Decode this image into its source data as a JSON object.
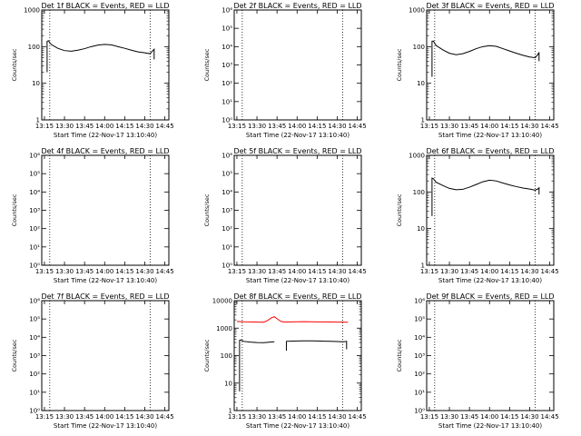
{
  "chart_data": [
    {
      "type": "line",
      "title": "Det 1f BLACK = Events, RED = LLD",
      "xlabel": "Start Time (22-Nov-17 13:10:40)",
      "ylabel": "Counts/sec",
      "yscale": "log",
      "ylim": [
        1,
        1000
      ],
      "xlim": [
        "13:13",
        "14:48"
      ],
      "x_ticks": [
        "13:15",
        "13:30",
        "13:45",
        "14:00",
        "14:15",
        "14:30",
        "14:45"
      ],
      "y_ticks": [
        "1",
        "10",
        "100",
        "1000"
      ],
      "vlines": [
        "13:19",
        "14:34"
      ],
      "series": [
        {
          "color": "#000000",
          "x": [
            "13:17",
            "13:17",
            "13:18",
            "13:20",
            "13:25",
            "13:30",
            "13:35",
            "13:40",
            "13:45",
            "13:50",
            "13:55",
            "14:00",
            "14:05",
            "14:10",
            "14:15",
            "14:20",
            "14:25",
            "14:30",
            "14:34",
            "14:36",
            "14:37",
            "14:37"
          ],
          "y": [
            20,
            140,
            145,
            115,
            90,
            78,
            75,
            80,
            88,
            100,
            110,
            115,
            112,
            100,
            90,
            80,
            72,
            68,
            64,
            78,
            85,
            45
          ]
        }
      ]
    },
    {
      "type": "line",
      "title": "Det 2f BLACK = Events, RED = LLD",
      "xlabel": "Start Time (22-Nov-17 13:10:40)",
      "ylabel": "Counts/sec",
      "yscale": "log",
      "ylim": [
        1,
        1000000
      ],
      "xlim": [
        "13:13",
        "14:48"
      ],
      "x_ticks": [
        "13:15",
        "13:30",
        "13:45",
        "14:00",
        "14:15",
        "14:30",
        "14:45"
      ],
      "y_ticks": [
        "10⁰",
        "10¹",
        "10²",
        "10³",
        "10⁴",
        "10⁵",
        "10⁶"
      ],
      "vlines": [
        "13:19",
        "14:34"
      ],
      "series": []
    },
    {
      "type": "line",
      "title": "Det 3f BLACK = Events, RED = LLD",
      "xlabel": "Start Time (22-Nov-17 13:10:40)",
      "ylabel": "Counts/sec",
      "yscale": "log",
      "ylim": [
        1,
        1000
      ],
      "xlim": [
        "13:13",
        "14:48"
      ],
      "x_ticks": [
        "13:15",
        "13:30",
        "13:45",
        "14:00",
        "14:15",
        "14:30",
        "14:45"
      ],
      "y_ticks": [
        "1",
        "10",
        "100",
        "1000"
      ],
      "vlines": [
        "13:19",
        "14:34"
      ],
      "series": [
        {
          "color": "#000000",
          "x": [
            "13:17",
            "13:17",
            "13:18",
            "13:20",
            "13:25",
            "13:30",
            "13:35",
            "13:40",
            "13:45",
            "13:50",
            "13:55",
            "14:00",
            "14:05",
            "14:10",
            "14:15",
            "14:20",
            "14:25",
            "14:30",
            "14:34",
            "14:36",
            "14:37",
            "14:37"
          ],
          "y": [
            15,
            140,
            142,
            108,
            82,
            66,
            60,
            64,
            74,
            88,
            100,
            106,
            102,
            88,
            76,
            66,
            58,
            52,
            50,
            60,
            70,
            40
          ]
        }
      ]
    },
    {
      "type": "line",
      "title": "Det 4f BLACK = Events, RED = LLD",
      "xlabel": "Start Time (22-Nov-17 13:10:40)",
      "ylabel": "Counts/sec",
      "yscale": "log",
      "ylim": [
        1,
        1000000
      ],
      "xlim": [
        "13:13",
        "14:48"
      ],
      "x_ticks": [
        "13:15",
        "13:30",
        "13:45",
        "14:00",
        "14:15",
        "14:30",
        "14:45"
      ],
      "y_ticks": [
        "10⁰",
        "10¹",
        "10²",
        "10³",
        "10⁴",
        "10⁵",
        "10⁶"
      ],
      "vlines": [
        "13:19",
        "14:34"
      ],
      "series": []
    },
    {
      "type": "line",
      "title": "Det 5f BLACK = Events, RED = LLD",
      "xlabel": "Start Time (22-Nov-17 13:10:40)",
      "ylabel": "Counts/sec",
      "yscale": "log",
      "ylim": [
        1,
        1000000
      ],
      "xlim": [
        "13:13",
        "14:48"
      ],
      "x_ticks": [
        "13:15",
        "13:30",
        "13:45",
        "14:00",
        "14:15",
        "14:30",
        "14:45"
      ],
      "y_ticks": [
        "10⁰",
        "10¹",
        "10²",
        "10³",
        "10⁴",
        "10⁵",
        "10⁶"
      ],
      "vlines": [
        "13:19",
        "14:34"
      ],
      "series": []
    },
    {
      "type": "line",
      "title": "Det 6f BLACK = Events, RED = LLD",
      "xlabel": "Start Time (22-Nov-17 13:10:40)",
      "ylabel": "Counts/sec",
      "yscale": "log",
      "ylim": [
        1,
        1000
      ],
      "xlim": [
        "13:13",
        "14:48"
      ],
      "x_ticks": [
        "13:15",
        "13:30",
        "13:45",
        "14:00",
        "14:15",
        "14:30",
        "14:45"
      ],
      "y_ticks": [
        "1",
        "10",
        "100",
        "1000"
      ],
      "vlines": [
        "13:19",
        "14:34"
      ],
      "series": [
        {
          "color": "#000000",
          "x": [
            "13:17",
            "13:17",
            "13:18",
            "13:20",
            "13:25",
            "13:30",
            "13:35",
            "13:40",
            "13:45",
            "13:50",
            "13:55",
            "14:00",
            "14:05",
            "14:10",
            "14:15",
            "14:20",
            "14:25",
            "14:30",
            "14:34",
            "14:36",
            "14:37",
            "14:37"
          ],
          "y": [
            22,
            240,
            230,
            185,
            150,
            125,
            115,
            118,
            135,
            160,
            190,
            210,
            200,
            175,
            155,
            140,
            128,
            120,
            112,
            120,
            130,
            85
          ]
        }
      ]
    },
    {
      "type": "line",
      "title": "Det 7f BLACK = Events, RED = LLD",
      "xlabel": "Start Time (22-Nov-17 13:10:40)",
      "ylabel": "Counts/sec",
      "yscale": "log",
      "ylim": [
        1,
        1000000
      ],
      "xlim": [
        "13:13",
        "14:48"
      ],
      "x_ticks": [
        "13:15",
        "13:30",
        "13:45",
        "14:00",
        "14:15",
        "14:30",
        "14:45"
      ],
      "y_ticks": [
        "10⁰",
        "10¹",
        "10²",
        "10³",
        "10⁴",
        "10⁵",
        "10⁶"
      ],
      "vlines": [
        "13:19",
        "14:34"
      ],
      "series": []
    },
    {
      "type": "line",
      "title": "Det 8f BLACK = Events, RED = LLD",
      "xlabel": "Start Time (22-Nov-17 13:10:40)",
      "ylabel": "Counts/sec",
      "yscale": "log",
      "ylim": [
        1,
        10000
      ],
      "xlim": [
        "13:13",
        "14:48"
      ],
      "x_ticks": [
        "13:15",
        "13:30",
        "13:45",
        "14:00",
        "14:15",
        "14:30",
        "14:45"
      ],
      "y_ticks": [
        "1",
        "10",
        "100",
        "1000",
        "10000"
      ],
      "vlines": [
        "13:19",
        "14:34"
      ],
      "series": [
        {
          "color": "#000000",
          "x": [
            "13:17",
            "13:17",
            "13:18",
            "13:20",
            "13:25",
            "13:30",
            "13:35",
            "13:40",
            "13:43"
          ],
          "y": [
            5,
            360,
            370,
            330,
            310,
            300,
            295,
            310,
            320
          ]
        },
        {
          "color": "#000000",
          "x": [
            "13:52",
            "13:52",
            "13:55",
            "14:00",
            "14:05",
            "14:10",
            "14:15",
            "14:20",
            "14:25",
            "14:30",
            "14:34",
            "14:36",
            "14:37",
            "14:37"
          ],
          "y": [
            150,
            330,
            335,
            340,
            345,
            345,
            340,
            335,
            330,
            325,
            320,
            325,
            330,
            170
          ]
        },
        {
          "color": "#ff0000",
          "x": [
            "13:15",
            "13:20",
            "13:25",
            "13:30",
            "13:35",
            "13:38",
            "13:41",
            "13:43",
            "13:45",
            "13:48",
            "13:51",
            "13:55",
            "14:00",
            "14:05",
            "14:10",
            "14:15",
            "14:20",
            "14:25",
            "14:30",
            "14:35",
            "14:38"
          ],
          "y": [
            1750,
            1700,
            1680,
            1650,
            1640,
            1900,
            2400,
            2600,
            2200,
            1750,
            1650,
            1680,
            1700,
            1720,
            1700,
            1690,
            1680,
            1670,
            1660,
            1650,
            1640
          ]
        }
      ]
    },
    {
      "type": "line",
      "title": "Det 9f BLACK = Events, RED = LLD",
      "xlabel": "Start Time (22-Nov-17 13:10:40)",
      "ylabel": "Counts/sec",
      "yscale": "log",
      "ylim": [
        1,
        1000000
      ],
      "xlim": [
        "13:13",
        "14:48"
      ],
      "x_ticks": [
        "13:15",
        "13:30",
        "13:45",
        "14:00",
        "14:15",
        "14:30",
        "14:45"
      ],
      "y_ticks": [
        "10⁰",
        "10¹",
        "10²",
        "10³",
        "10⁴",
        "10⁵",
        "10⁶"
      ],
      "vlines": [
        "13:19",
        "14:34"
      ],
      "series": []
    }
  ]
}
